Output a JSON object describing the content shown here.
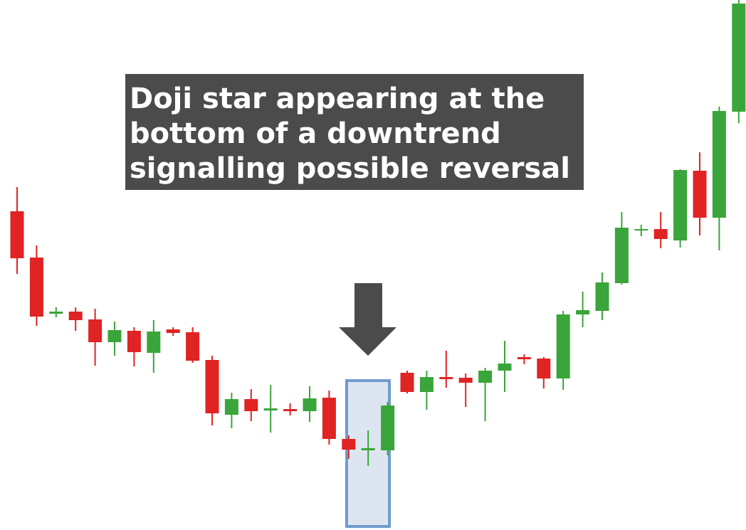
{
  "chart_data": {
    "type": "candlestick",
    "annotation": [
      "Doji star appearing at the",
      "bottom of a downtrend",
      "signalling possible reversal"
    ],
    "up_color": "#3aa53a",
    "down_color": "#e02323",
    "ylim": [
      0,
      745
    ],
    "open": [
      448,
      383,
      304,
      307,
      296,
      264,
      280,
      249,
      282,
      278,
      239,
      162,
      184,
      168,
      170,
      167,
      186,
      128,
      112,
      112,
      221,
      194,
      215,
      214,
      207,
      224,
      243,
      241,
      213,
      303,
      308,
      347,
      421,
      423,
      407,
      505,
      439,
      588
    ],
    "high": [
      482,
      400,
      313,
      313,
      311,
      293,
      285,
      295,
      285,
      285,
      245,
      193,
      198,
      204,
      178,
      202,
      196,
      133,
      140,
      180,
      224,
      224,
      252,
      220,
      228,
      266,
      247,
      243,
      308,
      335,
      362,
      447,
      429,
      447,
      507,
      531,
      595,
      745
    ],
    "low": [
      360,
      287,
      299,
      280,
      231,
      245,
      230,
      221,
      273,
      235,
      147,
      143,
      153,
      137,
      161,
      152,
      120,
      100,
      90,
      105,
      192,
      169,
      200,
      173,
      153,
      194,
      233,
      199,
      197,
      285,
      295,
      345,
      413,
      396,
      397,
      414,
      393,
      572
    ],
    "close": [
      382,
      300,
      307,
      295,
      264,
      281,
      250,
      279,
      277,
      238,
      164,
      184,
      167,
      171,
      167,
      185,
      128,
      113,
      115,
      175,
      194,
      215,
      212,
      207,
      224,
      234,
      240,
      213,
      303,
      309,
      348,
      425,
      423,
      409,
      506,
      439,
      589,
      740
    ]
  }
}
